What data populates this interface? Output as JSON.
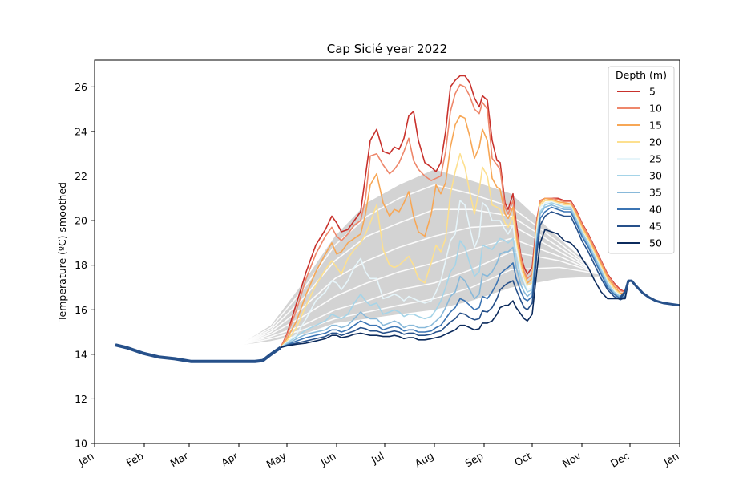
{
  "chart_data": {
    "type": "line",
    "title": "Cap Sicié year 2022",
    "xlabel": "",
    "ylabel": "Temperature (ºC) smoothed",
    "ylim": [
      10,
      27.2
    ],
    "xlim": [
      0,
      365
    ],
    "y_ticks": [
      10,
      12,
      14,
      16,
      18,
      20,
      22,
      24,
      26
    ],
    "x_ticks": [
      {
        "label": "Jan",
        "day": 0
      },
      {
        "label": "Feb",
        "day": 31
      },
      {
        "label": "Mar",
        "day": 59
      },
      {
        "label": "Apr",
        "day": 90
      },
      {
        "label": "May",
        "day": 120
      },
      {
        "label": "Jun",
        "day": 151
      },
      {
        "label": "Jul",
        "day": 181
      },
      {
        "label": "Aug",
        "day": 212
      },
      {
        "label": "Sep",
        "day": 243
      },
      {
        "label": "Oct",
        "day": 273
      },
      {
        "label": "Nov",
        "day": 304
      },
      {
        "label": "Dec",
        "day": 334
      },
      {
        "label": "Jan",
        "day": 365
      }
    ],
    "legend": {
      "title": "Depth (m)",
      "placement": "top-right"
    },
    "grid": false,
    "climatology": {
      "color": "#d3d3d3",
      "line_color": "#ffffff",
      "x": [
        90,
        110,
        130,
        150,
        170,
        190,
        212,
        235,
        260,
        290,
        315
      ],
      "upper": [
        14.4,
        15.3,
        17.2,
        19.3,
        20.8,
        21.6,
        22.3,
        21.8,
        21.2,
        19.2,
        17.6
      ],
      "lower": [
        14.4,
        14.6,
        14.9,
        15.4,
        15.6,
        15.8,
        16.0,
        16.4,
        17.0,
        17.4,
        17.5
      ],
      "mean_lines": [
        [
          14.4,
          15.2,
          16.9,
          18.9,
          20.2,
          21.0,
          21.6,
          21.2,
          20.6,
          19.0,
          17.6
        ],
        [
          14.4,
          15.1,
          16.5,
          18.2,
          19.3,
          19.9,
          20.5,
          20.5,
          20.2,
          18.8,
          17.6
        ],
        [
          14.4,
          15.0,
          16.1,
          17.4,
          18.2,
          18.8,
          19.3,
          19.7,
          19.8,
          18.6,
          17.6
        ],
        [
          14.4,
          14.9,
          15.7,
          16.6,
          17.2,
          17.7,
          18.1,
          18.7,
          19.2,
          18.4,
          17.6
        ],
        [
          14.4,
          14.8,
          15.3,
          16.0,
          16.4,
          16.9,
          17.2,
          17.8,
          18.6,
          18.2,
          17.6
        ],
        [
          14.4,
          14.7,
          15.1,
          15.6,
          15.9,
          16.2,
          16.5,
          17.0,
          17.8,
          17.9,
          17.6
        ]
      ]
    },
    "x": [
      13,
      20,
      30,
      40,
      50,
      60,
      70,
      80,
      90,
      100,
      105,
      110,
      116,
      120,
      126,
      132,
      138,
      144,
      148,
      151,
      154,
      158,
      162,
      166,
      169,
      172,
      176,
      180,
      184,
      187,
      190,
      193,
      196,
      199,
      202,
      206,
      210,
      213,
      216,
      219,
      222,
      225,
      228,
      231,
      234,
      237,
      240,
      242,
      245,
      248,
      251,
      253,
      256,
      258,
      261,
      263,
      266,
      268,
      270,
      273,
      276,
      278,
      281,
      285,
      289,
      293,
      297,
      301,
      304,
      308,
      312,
      316,
      320,
      324,
      328,
      331,
      333,
      335,
      338,
      342,
      346,
      350,
      355,
      360,
      365
    ],
    "base_x": [
      13,
      20,
      30,
      40,
      50,
      60,
      70,
      80,
      90,
      100,
      105,
      110,
      116
    ],
    "base_values": [
      14.42,
      14.3,
      14.05,
      13.88,
      13.8,
      13.68,
      13.68,
      13.68,
      13.68,
      13.68,
      13.72,
      14.0,
      14.3
    ],
    "tail_x": [
      328,
      331,
      333,
      335,
      338,
      342,
      346,
      350,
      355,
      360,
      365
    ],
    "tail_values": [
      16.55,
      16.8,
      17.3,
      17.3,
      17.05,
      16.75,
      16.55,
      16.4,
      16.3,
      16.25,
      16.2
    ],
    "series": [
      {
        "name": "5",
        "color": "#c8312c",
        "values": [
          14.42,
          14.3,
          14.05,
          13.88,
          13.8,
          13.68,
          13.68,
          13.68,
          13.68,
          13.68,
          13.72,
          14.0,
          14.3,
          14.9,
          16.3,
          17.7,
          18.9,
          19.6,
          20.2,
          19.9,
          19.5,
          19.6,
          20.0,
          20.4,
          22.0,
          23.6,
          24.1,
          23.1,
          23.0,
          23.3,
          23.2,
          23.7,
          24.7,
          24.9,
          23.6,
          22.6,
          22.4,
          22.2,
          22.6,
          24.0,
          26.0,
          26.3,
          26.5,
          26.5,
          26.2,
          25.5,
          25.1,
          25.6,
          25.4,
          23.6,
          22.7,
          22.6,
          20.8,
          20.5,
          21.2,
          19.9,
          18.4,
          17.9,
          17.6,
          17.9,
          20.1,
          20.9,
          21.0,
          21.0,
          21.0,
          20.9,
          20.9,
          20.4,
          19.9,
          19.4,
          18.8,
          18.2,
          17.6,
          17.2,
          16.9,
          16.8,
          17.3,
          17.3,
          17.05,
          16.75,
          16.55,
          16.4,
          16.3,
          16.25,
          16.2
        ]
      },
      {
        "name": "10",
        "color": "#ee876b",
        "values": [
          14.42,
          14.3,
          14.05,
          13.88,
          13.8,
          13.68,
          13.68,
          13.68,
          13.68,
          13.68,
          13.72,
          14.0,
          14.3,
          14.85,
          16.0,
          17.4,
          18.5,
          19.3,
          19.7,
          19.3,
          19.1,
          19.4,
          19.8,
          20.0,
          21.0,
          22.9,
          23.0,
          22.5,
          22.1,
          22.3,
          22.6,
          23.1,
          23.7,
          22.7,
          22.3,
          22.0,
          21.8,
          21.9,
          22.0,
          23.1,
          24.9,
          25.7,
          26.1,
          26.0,
          25.6,
          25.0,
          24.8,
          25.3,
          25.0,
          22.8,
          22.5,
          22.3,
          20.6,
          20.3,
          20.9,
          19.6,
          18.3,
          17.7,
          17.4,
          17.6,
          20.0,
          20.9,
          21.0,
          21.0,
          20.95,
          20.85,
          20.85,
          20.35,
          19.85,
          19.35,
          18.75,
          18.15,
          17.55,
          17.15,
          16.85,
          16.8,
          17.3,
          17.3,
          17.05,
          16.75,
          16.55,
          16.4,
          16.3,
          16.25,
          16.2
        ]
      },
      {
        "name": "15",
        "color": "#f7a756",
        "values": [
          14.42,
          14.3,
          14.05,
          13.88,
          13.8,
          13.68,
          13.68,
          13.68,
          13.68,
          13.68,
          13.72,
          14.0,
          14.3,
          14.7,
          15.5,
          16.7,
          17.7,
          18.5,
          19.0,
          18.5,
          18.6,
          19.0,
          19.2,
          19.4,
          20.3,
          21.6,
          22.1,
          20.8,
          20.2,
          20.5,
          20.4,
          20.8,
          21.3,
          20.2,
          19.5,
          19.3,
          20.3,
          21.6,
          21.2,
          21.7,
          23.3,
          24.3,
          24.7,
          24.6,
          23.8,
          22.8,
          23.3,
          24.1,
          23.6,
          21.9,
          21.5,
          21.4,
          20.3,
          20.1,
          20.6,
          19.3,
          18.1,
          17.6,
          17.2,
          17.4,
          19.9,
          20.8,
          21.0,
          20.95,
          20.85,
          20.8,
          20.75,
          20.25,
          19.75,
          19.25,
          18.65,
          18.05,
          17.45,
          17.05,
          16.75,
          16.75,
          17.3,
          17.3,
          17.05,
          16.75,
          16.55,
          16.4,
          16.3,
          16.25,
          16.2
        ]
      },
      {
        "name": "20",
        "color": "#fde08f",
        "values": [
          14.42,
          14.3,
          14.05,
          13.88,
          13.8,
          13.68,
          13.68,
          13.68,
          13.68,
          13.68,
          13.72,
          14.0,
          14.3,
          14.6,
          15.2,
          16.2,
          17.1,
          17.8,
          18.2,
          17.9,
          17.6,
          18.3,
          18.7,
          19.0,
          19.4,
          19.9,
          20.7,
          18.7,
          18.0,
          17.9,
          18.0,
          18.2,
          18.4,
          18.0,
          17.4,
          17.2,
          18.1,
          18.9,
          18.6,
          19.2,
          21.2,
          22.2,
          23.0,
          22.4,
          21.3,
          20.3,
          21.4,
          22.4,
          22.0,
          20.7,
          20.6,
          20.5,
          19.9,
          19.7,
          20.2,
          19.0,
          17.9,
          17.5,
          17.1,
          17.2,
          19.8,
          20.7,
          20.9,
          20.9,
          20.8,
          20.7,
          20.7,
          20.15,
          19.65,
          19.15,
          18.55,
          17.95,
          17.35,
          16.95,
          16.7,
          16.7,
          17.3,
          17.3,
          17.05,
          16.75,
          16.55,
          16.4,
          16.3,
          16.25,
          16.2
        ]
      },
      {
        "name": "25",
        "color": "#e6f5fa",
        "values": [
          14.42,
          14.3,
          14.05,
          13.88,
          13.8,
          13.68,
          13.68,
          13.68,
          13.68,
          13.68,
          13.72,
          14.0,
          14.3,
          14.55,
          14.9,
          15.6,
          16.4,
          16.8,
          17.3,
          17.2,
          16.9,
          17.3,
          17.9,
          18.3,
          17.7,
          17.4,
          17.4,
          16.5,
          16.6,
          16.7,
          16.6,
          16.4,
          16.6,
          16.5,
          16.4,
          16.3,
          16.4,
          16.8,
          17.3,
          18.2,
          19.1,
          19.4,
          20.9,
          20.7,
          19.7,
          18.8,
          19.3,
          20.8,
          20.6,
          20.0,
          20.0,
          20.0,
          19.6,
          19.4,
          19.8,
          18.8,
          17.7,
          17.3,
          16.9,
          17.0,
          19.6,
          20.6,
          20.8,
          20.85,
          20.75,
          20.65,
          20.65,
          20.05,
          19.55,
          19.05,
          18.45,
          17.85,
          17.25,
          16.85,
          16.65,
          16.65,
          17.3,
          17.3,
          17.05,
          16.75,
          16.55,
          16.4,
          16.3,
          16.25,
          16.2
        ]
      },
      {
        "name": "30",
        "color": "#a5d4e8",
        "values": [
          14.42,
          14.3,
          14.05,
          13.88,
          13.8,
          13.68,
          13.68,
          13.68,
          13.68,
          13.68,
          13.72,
          14.0,
          14.3,
          14.5,
          14.8,
          15.1,
          15.3,
          15.5,
          15.8,
          15.7,
          15.6,
          15.8,
          16.3,
          16.7,
          16.4,
          16.2,
          16.3,
          15.8,
          15.9,
          16.0,
          15.9,
          15.7,
          15.8,
          15.8,
          15.7,
          15.6,
          15.7,
          16.0,
          16.4,
          17.0,
          17.7,
          18.0,
          19.1,
          18.8,
          18.1,
          17.5,
          17.7,
          18.9,
          18.8,
          18.7,
          19.0,
          19.2,
          19.1,
          19.0,
          19.2,
          18.3,
          17.4,
          17.1,
          16.8,
          16.9,
          19.4,
          20.4,
          20.7,
          20.8,
          20.7,
          20.6,
          20.6,
          20.0,
          19.5,
          19.0,
          18.4,
          17.8,
          17.2,
          16.8,
          16.6,
          16.6,
          17.3,
          17.3,
          17.05,
          16.75,
          16.55,
          16.4,
          16.3,
          16.25,
          16.2
        ]
      },
      {
        "name": "35",
        "color": "#88b9da",
        "values": [
          14.42,
          14.3,
          14.05,
          13.88,
          13.8,
          13.68,
          13.68,
          13.68,
          13.68,
          13.68,
          13.72,
          14.0,
          14.3,
          14.45,
          14.7,
          14.9,
          15.0,
          15.1,
          15.3,
          15.3,
          15.2,
          15.3,
          15.6,
          15.9,
          15.7,
          15.6,
          15.6,
          15.3,
          15.4,
          15.5,
          15.4,
          15.2,
          15.3,
          15.3,
          15.2,
          15.2,
          15.3,
          15.5,
          15.7,
          16.1,
          16.6,
          16.8,
          17.5,
          17.3,
          16.9,
          16.5,
          16.7,
          17.6,
          17.5,
          17.7,
          18.1,
          18.5,
          18.6,
          18.6,
          18.8,
          17.9,
          17.1,
          16.8,
          16.6,
          16.8,
          19.2,
          20.3,
          20.6,
          20.7,
          20.6,
          20.5,
          20.5,
          19.9,
          19.4,
          18.9,
          18.3,
          17.7,
          17.1,
          16.75,
          16.55,
          16.6,
          17.3,
          17.3,
          17.05,
          16.75,
          16.55,
          16.4,
          16.3,
          16.25,
          16.2
        ]
      },
      {
        "name": "40",
        "color": "#3b74b3",
        "values": [
          14.42,
          14.3,
          14.05,
          13.88,
          13.8,
          13.68,
          13.68,
          13.68,
          13.68,
          13.68,
          13.72,
          14.0,
          14.3,
          14.42,
          14.6,
          14.75,
          14.85,
          14.95,
          15.1,
          15.1,
          15.0,
          15.1,
          15.3,
          15.5,
          15.4,
          15.3,
          15.3,
          15.1,
          15.2,
          15.25,
          15.2,
          15.05,
          15.1,
          15.1,
          15.0,
          15.0,
          15.05,
          15.2,
          15.3,
          15.6,
          15.9,
          16.1,
          16.5,
          16.4,
          16.2,
          16.0,
          16.1,
          16.6,
          16.5,
          16.8,
          17.2,
          17.6,
          17.8,
          17.9,
          18.1,
          17.4,
          16.8,
          16.5,
          16.4,
          16.6,
          19.0,
          20.1,
          20.4,
          20.6,
          20.5,
          20.4,
          20.4,
          19.8,
          19.3,
          18.8,
          18.2,
          17.6,
          17.0,
          16.7,
          16.5,
          16.6,
          17.3,
          17.3,
          17.05,
          16.75,
          16.55,
          16.4,
          16.3,
          16.25,
          16.2
        ]
      },
      {
        "name": "45",
        "color": "#26508a",
        "values": [
          14.42,
          14.3,
          14.05,
          13.88,
          13.8,
          13.68,
          13.68,
          13.68,
          13.68,
          13.68,
          13.72,
          14.0,
          14.3,
          14.4,
          14.5,
          14.6,
          14.7,
          14.8,
          14.95,
          14.95,
          14.85,
          14.95,
          15.05,
          15.2,
          15.15,
          15.05,
          15.05,
          14.95,
          15.0,
          15.05,
          15.0,
          14.9,
          14.95,
          14.95,
          14.85,
          14.85,
          14.9,
          15.0,
          15.05,
          15.25,
          15.45,
          15.6,
          15.85,
          15.8,
          15.65,
          15.55,
          15.6,
          15.95,
          15.9,
          16.1,
          16.5,
          16.9,
          17.1,
          17.2,
          17.3,
          16.9,
          16.4,
          16.1,
          16.0,
          16.3,
          18.6,
          19.8,
          20.2,
          20.4,
          20.3,
          20.2,
          20.2,
          19.6,
          19.1,
          18.6,
          18.0,
          17.4,
          16.9,
          16.6,
          16.45,
          16.55,
          17.3,
          17.3,
          17.05,
          16.75,
          16.55,
          16.4,
          16.3,
          16.25,
          16.2
        ]
      },
      {
        "name": "50",
        "color": "#0b2a5c",
        "values": [
          14.42,
          14.3,
          14.05,
          13.88,
          13.8,
          13.68,
          13.68,
          13.68,
          13.68,
          13.68,
          13.72,
          14.0,
          14.3,
          14.38,
          14.45,
          14.5,
          14.6,
          14.7,
          14.85,
          14.85,
          14.75,
          14.8,
          14.9,
          14.95,
          14.9,
          14.85,
          14.85,
          14.8,
          14.8,
          14.85,
          14.8,
          14.7,
          14.75,
          14.75,
          14.65,
          14.65,
          14.7,
          14.75,
          14.8,
          14.9,
          15.0,
          15.1,
          15.3,
          15.3,
          15.2,
          15.1,
          15.15,
          15.4,
          15.4,
          15.5,
          15.8,
          16.1,
          16.2,
          16.2,
          16.4,
          16.1,
          15.8,
          15.6,
          15.5,
          15.8,
          17.8,
          19.0,
          19.6,
          19.5,
          19.4,
          19.1,
          19.0,
          18.7,
          18.3,
          17.9,
          17.3,
          16.8,
          16.5,
          16.5,
          16.5,
          16.5,
          17.25,
          17.3,
          17.05,
          16.75,
          16.55,
          16.4,
          16.3,
          16.25,
          16.2
        ]
      }
    ]
  }
}
